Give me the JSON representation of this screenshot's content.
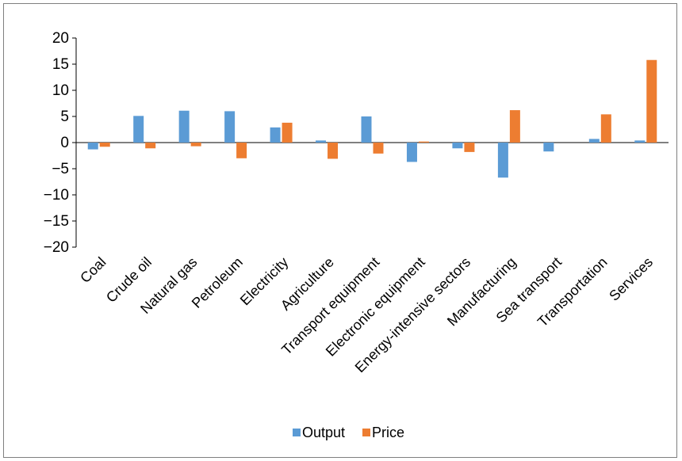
{
  "chart_data": {
    "type": "bar",
    "categories": [
      "Coal",
      "Crude oil",
      "Natural gas",
      "Petroleum",
      "Electricity",
      "Agriculture",
      "Transport equipment",
      "Electronic equipment",
      "Energy-intensive sectors",
      "Manufacturing",
      "Sea transport",
      "Transportation",
      "Services"
    ],
    "series": [
      {
        "name": "Output",
        "color": "#5b9bd5",
        "values": [
          -1.3,
          5.1,
          6.1,
          6.0,
          2.9,
          0.4,
          5.0,
          -3.7,
          -1.1,
          -6.7,
          -1.7,
          0.7,
          0.4
        ]
      },
      {
        "name": "Price",
        "color": "#ed7d31",
        "values": [
          -0.8,
          -1.1,
          -0.7,
          -3.0,
          3.8,
          -3.1,
          -2.1,
          0.2,
          -1.8,
          6.2,
          0.0,
          5.4,
          15.8
        ]
      }
    ],
    "yticks": [
      "20",
      "15",
      "10",
      "5",
      "0",
      "−5",
      "−10",
      "−15",
      "−20"
    ],
    "ylim": [
      -20,
      20
    ],
    "legend_position": "bottom",
    "grid": false
  }
}
